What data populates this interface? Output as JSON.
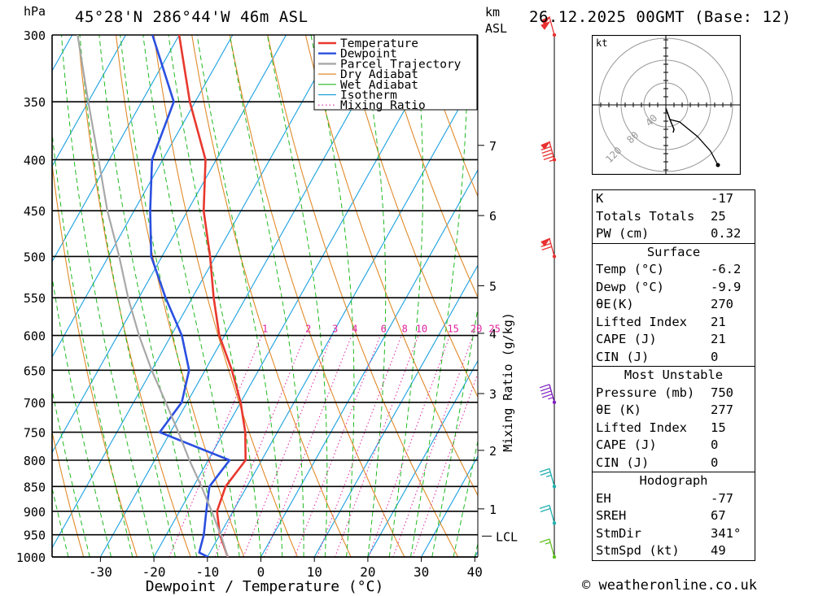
{
  "header": {
    "location": "45°28'N 286°44'W 46m ASL",
    "datetime": "26.12.2025 00GMT (Base: 12)",
    "pressure_unit": "hPa",
    "height_unit": "km",
    "height_unit_sub": "ASL"
  },
  "chart_data": {
    "type": "line",
    "subtype": "skew-t log-p",
    "xlabel": "Dewpoint / Temperature (°C)",
    "ylabel": "hPa",
    "mixing_ratio_label": "Mixing Ratio (g/kg)",
    "x_ticks": [
      -30,
      -20,
      -10,
      0,
      10,
      20,
      30,
      40
    ],
    "pressure_levels": [
      300,
      350,
      400,
      450,
      500,
      550,
      600,
      650,
      700,
      750,
      800,
      850,
      900,
      950,
      1000
    ],
    "km_ticks": [
      {
        "label": "7",
        "p": 387
      },
      {
        "label": "6",
        "p": 455
      },
      {
        "label": "5",
        "p": 535
      },
      {
        "label": "4",
        "p": 597
      },
      {
        "label": "3",
        "p": 686
      },
      {
        "label": "2",
        "p": 782
      },
      {
        "label": "1",
        "p": 895
      }
    ],
    "lcl_label": "LCL",
    "lcl_p": 953,
    "mixing_ratio_values": [
      "1",
      "2",
      "3",
      "4",
      "6",
      "8",
      "10",
      "15",
      "20",
      "25"
    ],
    "legend": [
      "Temperature",
      "Dewpoint",
      "Parcel Trajectory",
      "Dry Adiabat",
      "Wet Adiabat",
      "Isotherm",
      "Mixing Ratio"
    ],
    "colors": {
      "temperature": "#e8382e",
      "dewpoint": "#2a4fe0",
      "parcel": "#a8a8a8",
      "dry_adiabat": "#e08a2a",
      "wet_adiabat": "#20b820",
      "isotherm": "#1aa0e0",
      "mixing_ratio": "#e020a0"
    },
    "series": [
      {
        "name": "Temperature",
        "points": [
          [
            1000,
            -6.2
          ],
          [
            950,
            -10
          ],
          [
            900,
            -13
          ],
          [
            850,
            -14
          ],
          [
            800,
            -13
          ],
          [
            750,
            -16
          ],
          [
            700,
            -20
          ],
          [
            650,
            -25
          ],
          [
            600,
            -31
          ],
          [
            550,
            -36
          ],
          [
            500,
            -41
          ],
          [
            450,
            -47
          ],
          [
            400,
            -52
          ],
          [
            350,
            -61
          ],
          [
            300,
            -70
          ]
        ]
      },
      {
        "name": "Dewpoint",
        "points": [
          [
            1000,
            -9.9
          ],
          [
            990,
            -12
          ],
          [
            950,
            -13
          ],
          [
            900,
            -15
          ],
          [
            850,
            -17
          ],
          [
            800,
            -16
          ],
          [
            750,
            -32
          ],
          [
            700,
            -31
          ],
          [
            650,
            -33
          ],
          [
            600,
            -38
          ],
          [
            550,
            -45
          ],
          [
            500,
            -52
          ],
          [
            450,
            -57
          ],
          [
            400,
            -62
          ],
          [
            350,
            -64
          ],
          [
            300,
            -75
          ]
        ]
      },
      {
        "name": "Parcel Trajectory",
        "points": [
          [
            1000,
            -6.2
          ],
          [
            953,
            -9.6
          ],
          [
            900,
            -14
          ],
          [
            850,
            -18.5
          ],
          [
            800,
            -23.5
          ],
          [
            750,
            -28.5
          ],
          [
            700,
            -34
          ],
          [
            650,
            -40
          ],
          [
            600,
            -46
          ],
          [
            550,
            -52
          ],
          [
            500,
            -58
          ],
          [
            450,
            -65
          ],
          [
            400,
            -72
          ],
          [
            350,
            -80
          ],
          [
            300,
            -89
          ]
        ]
      }
    ],
    "wind_barbs": [
      {
        "p": 300,
        "speed_kt": 100,
        "color": "#e83030"
      },
      {
        "p": 400,
        "speed_kt": 95,
        "color": "#e83030"
      },
      {
        "p": 500,
        "speed_kt": 70,
        "color": "#e83030"
      },
      {
        "p": 700,
        "speed_kt": 45,
        "color": "#8020c0"
      },
      {
        "p": 850,
        "speed_kt": 25,
        "color": "#20b0b0"
      },
      {
        "p": 925,
        "speed_kt": 20,
        "color": "#20b0b0"
      },
      {
        "p": 1000,
        "speed_kt": 15,
        "color": "#60c020"
      }
    ]
  },
  "hodograph": {
    "unit": "kt",
    "ring_labels": [
      "40",
      "80",
      "120"
    ]
  },
  "indices": {
    "k": {
      "label": "K",
      "value": "-17"
    },
    "tt": {
      "label": "Totals Totals",
      "value": "25"
    },
    "pw": {
      "label": "PW (cm)",
      "value": "0.32"
    }
  },
  "surface": {
    "title": "Surface",
    "temp": {
      "label": "Temp (°C)",
      "value": "-6.2"
    },
    "dewp": {
      "label": "Dewp (°C)",
      "value": "-9.9"
    },
    "theta_e": {
      "label": "θE(K)",
      "value": "270"
    },
    "li": {
      "label": "Lifted Index",
      "value": "21"
    },
    "cape": {
      "label": "CAPE (J)",
      "value": "21"
    },
    "cin": {
      "label": "CIN (J)",
      "value": "0"
    }
  },
  "most_unstable": {
    "title": "Most Unstable",
    "pressure": {
      "label": "Pressure (mb)",
      "value": "750"
    },
    "theta_e": {
      "label": "θE (K)",
      "value": "277"
    },
    "li": {
      "label": "Lifted Index",
      "value": "15"
    },
    "cape": {
      "label": "CAPE (J)",
      "value": "0"
    },
    "cin": {
      "label": "CIN (J)",
      "value": "0"
    }
  },
  "hodograph_stats": {
    "title": "Hodograph",
    "eh": {
      "label": "EH",
      "value": "-77"
    },
    "sreh": {
      "label": "SREH",
      "value": "67"
    },
    "stmdir": {
      "label": "StmDir",
      "value": "341°"
    },
    "stmspd": {
      "label": "StmSpd (kt)",
      "value": "49"
    }
  },
  "copyright": "© weatheronline.co.uk"
}
